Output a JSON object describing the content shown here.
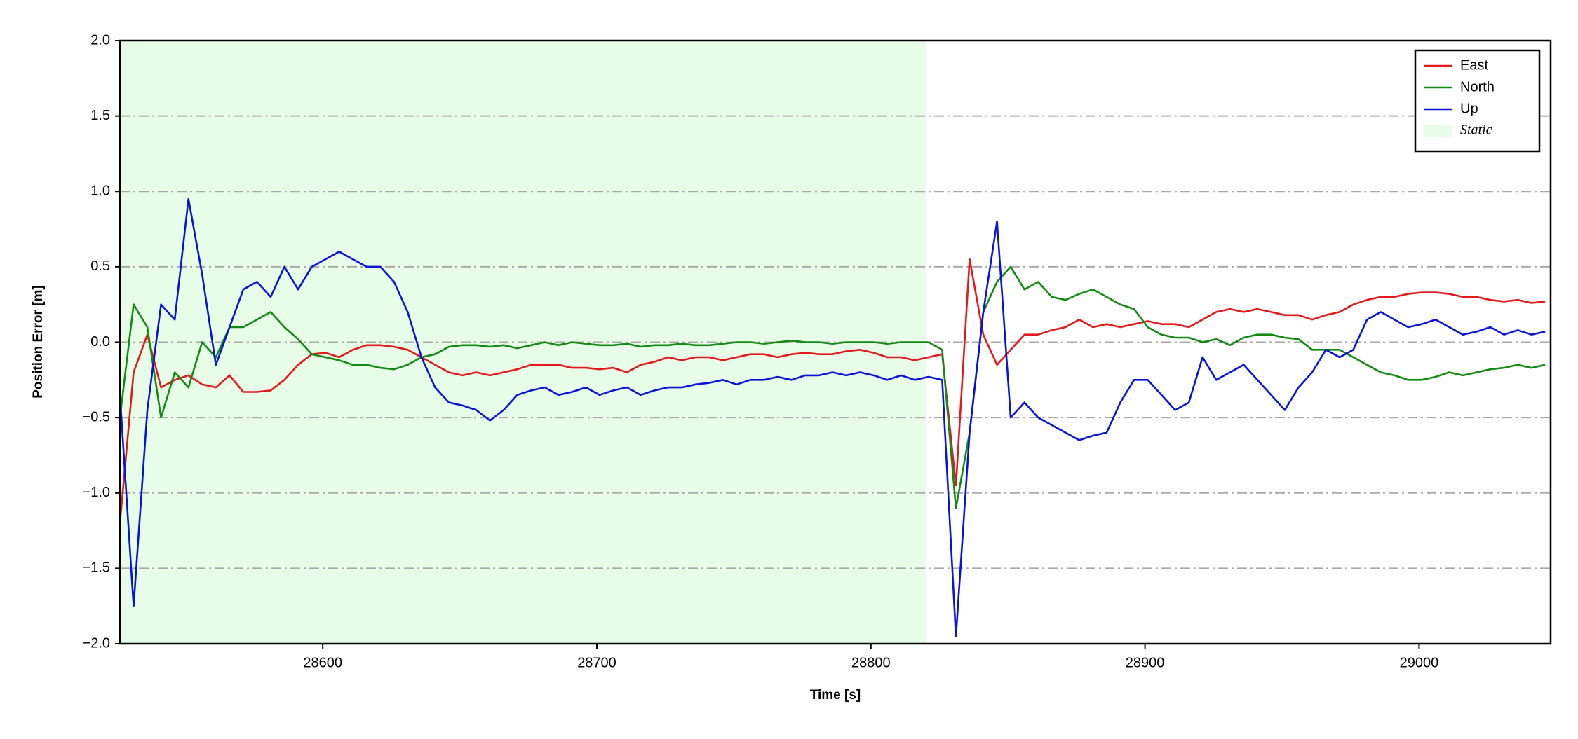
{
  "chart_data": {
    "type": "line",
    "xlabel": "Time [s]",
    "ylabel": "Position Error [m]",
    "xlim": [
      28526,
      29048
    ],
    "ylim": [
      -2,
      2
    ],
    "xticks": [
      28600,
      28700,
      28800,
      28900,
      29000
    ],
    "yticks": [
      {
        "value": -2,
        "label": "−2.0"
      },
      {
        "value": -1.5,
        "label": "−1.5"
      },
      {
        "value": -1,
        "label": "−1.0"
      },
      {
        "value": -0.5,
        "label": "−0.5"
      },
      {
        "value": 0,
        "label": "0.0"
      },
      {
        "value": 0.5,
        "label": "0.5"
      },
      {
        "value": 1,
        "label": "1.0"
      },
      {
        "value": 1.5,
        "label": "1.5"
      },
      {
        "value": 2,
        "label": "2.0"
      }
    ],
    "grid": true,
    "legend": "upper right",
    "shade": {
      "name": "Static",
      "xlim": [
        28526,
        28820
      ],
      "color": "#e8fde8"
    },
    "x": [
      28526,
      28531,
      28536,
      28541,
      28546,
      28551,
      28556,
      28561,
      28566,
      28571,
      28576,
      28581,
      28586,
      28591,
      28596,
      28601,
      28606,
      28611,
      28616,
      28621,
      28626,
      28631,
      28636,
      28641,
      28646,
      28651,
      28656,
      28661,
      28666,
      28671,
      28676,
      28681,
      28686,
      28691,
      28696,
      28701,
      28706,
      28711,
      28716,
      28721,
      28726,
      28731,
      28736,
      28741,
      28746,
      28751,
      28756,
      28761,
      28766,
      28771,
      28776,
      28781,
      28786,
      28791,
      28796,
      28801,
      28806,
      28811,
      28816,
      28821,
      28826,
      28831,
      28836,
      28841,
      28846,
      28851,
      28856,
      28861,
      28866,
      28871,
      28876,
      28881,
      28886,
      28891,
      28896,
      28901,
      28906,
      28911,
      28916,
      28921,
      28926,
      28931,
      28936,
      28941,
      28946,
      28951,
      28956,
      28961,
      28966,
      28971,
      28976,
      28981,
      28986,
      28991,
      28996,
      29001,
      29006,
      29011,
      29016,
      29021,
      29026,
      29031,
      29036,
      29041,
      29046
    ],
    "series": [
      {
        "name": "East",
        "color": "#e31a1c",
        "values": [
          -1.2,
          -0.2,
          0.05,
          -0.3,
          -0.25,
          -0.22,
          -0.28,
          -0.3,
          -0.22,
          -0.33,
          -0.33,
          -0.32,
          -0.25,
          -0.15,
          -0.08,
          -0.07,
          -0.1,
          -0.05,
          -0.02,
          -0.02,
          -0.03,
          -0.05,
          -0.1,
          -0.15,
          -0.2,
          -0.22,
          -0.2,
          -0.22,
          -0.2,
          -0.18,
          -0.15,
          -0.15,
          -0.15,
          -0.17,
          -0.17,
          -0.18,
          -0.17,
          -0.2,
          -0.15,
          -0.13,
          -0.1,
          -0.12,
          -0.1,
          -0.1,
          -0.12,
          -0.1,
          -0.08,
          -0.08,
          -0.1,
          -0.08,
          -0.07,
          -0.08,
          -0.08,
          -0.06,
          -0.05,
          -0.07,
          -0.1,
          -0.1,
          -0.12,
          -0.1,
          -0.08,
          -0.95,
          0.55,
          0.05,
          -0.15,
          -0.05,
          0.05,
          0.05,
          0.08,
          0.1,
          0.15,
          0.1,
          0.12,
          0.1,
          0.12,
          0.14,
          0.12,
          0.12,
          0.1,
          0.15,
          0.2,
          0.22,
          0.2,
          0.22,
          0.2,
          0.18,
          0.18,
          0.15,
          0.18,
          0.2,
          0.25,
          0.28,
          0.3,
          0.3,
          0.32,
          0.33,
          0.33,
          0.32,
          0.3,
          0.3,
          0.28,
          0.27,
          0.28,
          0.26,
          0.27
        ]
      },
      {
        "name": "North",
        "color": "#138a13",
        "values": [
          -0.5,
          0.25,
          0.1,
          -0.5,
          -0.2,
          -0.3,
          0.0,
          -0.1,
          0.1,
          0.1,
          0.15,
          0.2,
          0.1,
          0.02,
          -0.08,
          -0.1,
          -0.12,
          -0.15,
          -0.15,
          -0.17,
          -0.18,
          -0.15,
          -0.1,
          -0.08,
          -0.03,
          -0.02,
          -0.02,
          -0.03,
          -0.02,
          -0.04,
          -0.02,
          0,
          -0.02,
          0,
          -0.01,
          -0.02,
          -0.02,
          -0.01,
          -0.03,
          -0.02,
          -0.02,
          -0.01,
          -0.02,
          -0.02,
          -0.01,
          0,
          0,
          -0.01,
          0,
          0.01,
          0,
          0,
          -0.01,
          0,
          0,
          0,
          -0.01,
          0,
          0,
          0,
          -0.05,
          -1.1,
          -0.6,
          0.2,
          0.4,
          0.5,
          0.35,
          0.4,
          0.3,
          0.28,
          0.32,
          0.35,
          0.3,
          0.25,
          0.22,
          0.1,
          0.05,
          0.03,
          0.03,
          0,
          0.02,
          -0.02,
          0.03,
          0.05,
          0.05,
          0.03,
          0.02,
          -0.05,
          -0.05,
          -0.05,
          -0.1,
          -0.15,
          -0.2,
          -0.22,
          -0.25,
          -0.25,
          -0.23,
          -0.2,
          -0.22,
          -0.2,
          -0.18,
          -0.17,
          -0.15,
          -0.17,
          -0.15
        ]
      },
      {
        "name": "Up",
        "color": "#0a14d8",
        "values": [
          -0.35,
          -1.75,
          -0.45,
          0.25,
          0.15,
          0.95,
          0.45,
          -0.15,
          0.1,
          0.35,
          0.4,
          0.3,
          0.5,
          0.35,
          0.5,
          0.55,
          0.6,
          0.55,
          0.5,
          0.5,
          0.4,
          0.2,
          -0.1,
          -0.3,
          -0.4,
          -0.42,
          -0.45,
          -0.52,
          -0.45,
          -0.35,
          -0.32,
          -0.3,
          -0.35,
          -0.33,
          -0.3,
          -0.35,
          -0.32,
          -0.3,
          -0.35,
          -0.32,
          -0.3,
          -0.3,
          -0.28,
          -0.27,
          -0.25,
          -0.28,
          -0.25,
          -0.25,
          -0.23,
          -0.25,
          -0.22,
          -0.22,
          -0.2,
          -0.22,
          -0.2,
          -0.22,
          -0.25,
          -0.22,
          -0.25,
          -0.23,
          -0.25,
          -1.95,
          -0.6,
          0.2,
          0.8,
          -0.5,
          -0.4,
          -0.5,
          -0.55,
          -0.6,
          -0.65,
          -0.62,
          -0.6,
          -0.4,
          -0.25,
          -0.25,
          -0.35,
          -0.45,
          -0.4,
          -0.1,
          -0.25,
          -0.2,
          -0.15,
          -0.25,
          -0.35,
          -0.45,
          -0.3,
          -0.2,
          -0.05,
          -0.1,
          -0.05,
          0.15,
          0.2,
          0.15,
          0.1,
          0.12,
          0.15,
          0.1,
          0.05,
          0.07,
          0.1,
          0.05,
          0.08,
          0.05,
          0.07
        ]
      }
    ]
  }
}
